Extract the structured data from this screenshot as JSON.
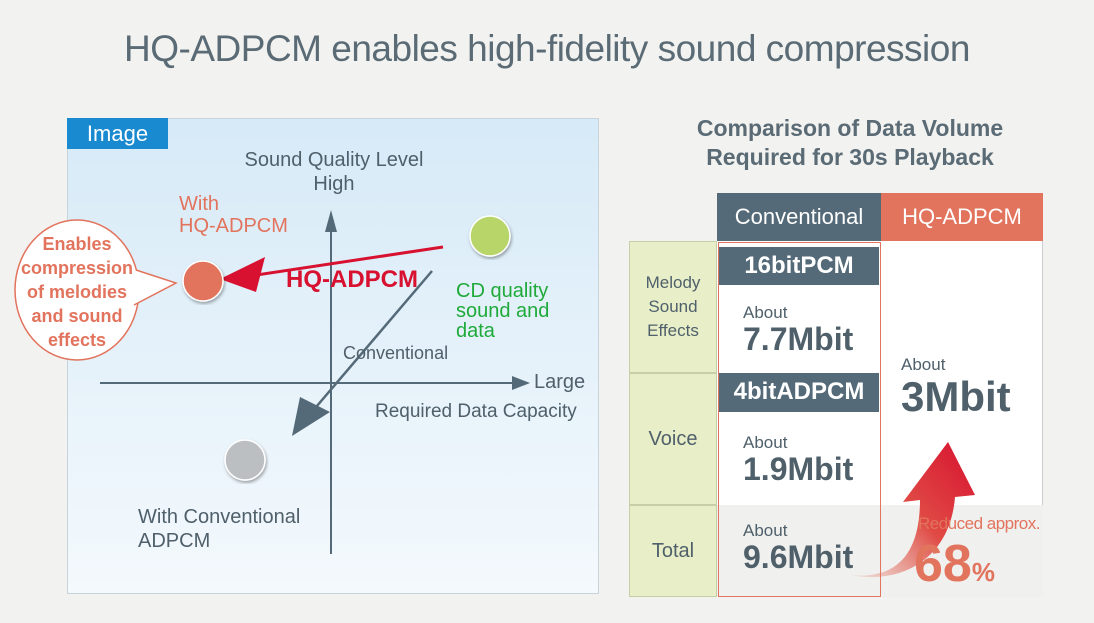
{
  "title": "HQ-ADPCM enables high-fidelity sound compression",
  "diagram": {
    "tag": "Image",
    "y_axis": {
      "label": "Sound Quality Level",
      "high": "High"
    },
    "x_axis": {
      "large": "Large",
      "label": "Required Data Capacity"
    },
    "points": {
      "hq": {
        "label_1": "With",
        "label_2": "HQ-ADPCM",
        "color": "#e2735d"
      },
      "cd": {
        "label_1": "CD quality",
        "label_2": "sound and",
        "label_3": "data",
        "color": "#b8d56a"
      },
      "conv": {
        "label_1": "With Conventional",
        "label_2": "ADPCM",
        "color": "#bcbfc2"
      }
    },
    "arrow_hq_label": "HQ-ADPCM",
    "arrow_conv_label": "Conventional",
    "callout": [
      "Enables",
      "compression",
      "of melodies",
      "and sound",
      "effects"
    ]
  },
  "comparison": {
    "title_1": "Comparison of Data Volume",
    "title_2": "Required for 30s Playback",
    "columns": [
      "Conventional",
      "HQ-ADPCM"
    ],
    "rows": [
      {
        "label": [
          "Melody",
          "Sound",
          "Effects"
        ],
        "format": "16bitPCM",
        "about": "About",
        "value": "7.7Mbit"
      },
      {
        "label": [
          "Voice"
        ],
        "format": "4bitADPCM",
        "about": "About",
        "value": "1.9Mbit"
      },
      {
        "label": [
          "Total"
        ],
        "about": "About",
        "value": "9.6Mbit"
      }
    ],
    "hq": {
      "about": "About",
      "value": "3Mbit"
    },
    "reduction": {
      "label": "Reduced approx.",
      "value": "68",
      "unit": "%"
    }
  }
}
